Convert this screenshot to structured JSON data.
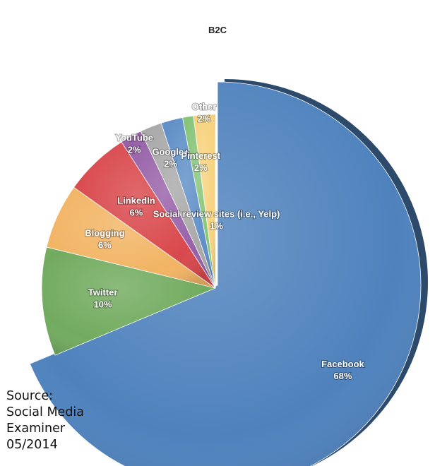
{
  "chart_data": {
    "type": "pie",
    "title": "B2C",
    "slices": [
      {
        "label": "Facebook",
        "value": 68,
        "value_label": "68%",
        "color": "#4f82bd"
      },
      {
        "label": "Twitter",
        "value": 10,
        "value_label": "10%",
        "color": "#72ab5f"
      },
      {
        "label": "Blogging",
        "value": 6,
        "value_label": "6%",
        "color": "#f2b464"
      },
      {
        "label": "LinkedIn",
        "value": 6,
        "value_label": "6%",
        "color": "#d9484c"
      },
      {
        "label": "YouTube",
        "value": 2,
        "value_label": "2%",
        "color": "#9760a8"
      },
      {
        "label": "Google+",
        "value": 2,
        "value_label": "2%",
        "color": "#a9a9a9"
      },
      {
        "label": "Pinterest",
        "value": 2,
        "value_label": "2%",
        "color": "#5f8fc7"
      },
      {
        "label": "Social review sites (i.e., Yelp)",
        "value": 1,
        "value_label": "1%",
        "color": "#86c479"
      },
      {
        "label": "Other",
        "value": 2,
        "value_label": "2%",
        "color": "#f7d37f"
      }
    ]
  },
  "source": {
    "lines": [
      "Source:",
      "Social Media",
      "Examiner",
      "05/2014"
    ]
  }
}
